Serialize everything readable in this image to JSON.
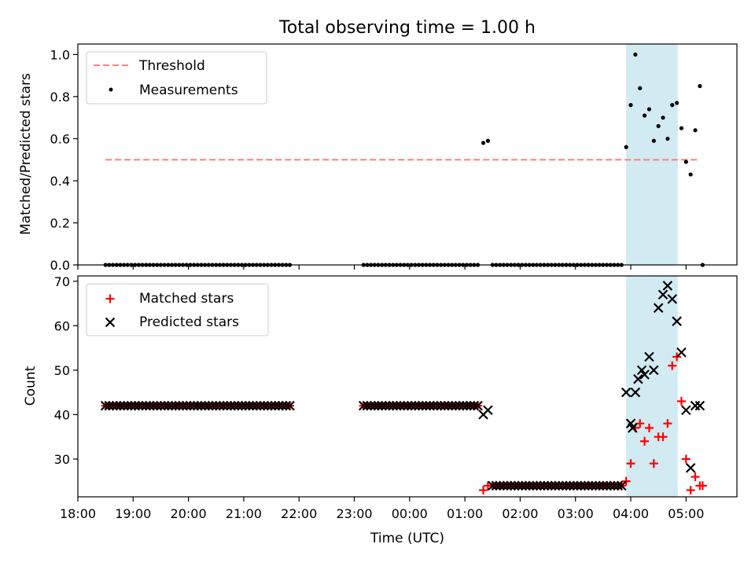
{
  "figure": {
    "title": "Total observing time = 1.00 h",
    "xlabel": "Time (UTC)"
  },
  "colors": {
    "threshold": "#ff7f7f",
    "measurements": "#000000",
    "matched": "#ff0000",
    "predicted": "#000000",
    "highlight": "#add8e6"
  },
  "chart_data": [
    {
      "type": "scatter",
      "ylabel": "Matched/Predicted stars",
      "xlim_hours": [
        18.0,
        29.92
      ],
      "ylim": [
        0.0,
        1.05
      ],
      "yticks": [
        "0.0",
        "0.2",
        "0.4",
        "0.6",
        "0.8",
        "1.0"
      ],
      "legend": {
        "position": "top-left",
        "entries": [
          "Threshold",
          "Measurements"
        ]
      },
      "highlight_span": [
        "03:55",
        "04:51"
      ],
      "series": [
        {
          "name": "Threshold",
          "style": "dashed-line",
          "x": [
            "18:30",
            "05:15"
          ],
          "y": [
            0.5,
            0.5
          ]
        },
        {
          "name": "Measurements",
          "style": "dot",
          "segments": [
            {
              "x_from": "18:30",
              "x_to": "21:50",
              "step_min": 4,
              "y": 0.0
            },
            {
              "x_from": "23:10",
              "x_to": "01:15",
              "step_min": 4,
              "y": 0.0
            },
            {
              "x_from": "01:30",
              "x_to": "03:50",
              "step_min": 4,
              "y": 0.0
            }
          ],
          "x": [
            "01:20",
            "01:25",
            "03:55",
            "04:00",
            "04:05",
            "04:10",
            "04:15",
            "04:20",
            "04:25",
            "04:30",
            "04:35",
            "04:40",
            "04:45",
            "04:50",
            "04:55",
            "05:00",
            "05:05",
            "05:10",
            "05:15",
            "05:18"
          ],
          "y": [
            0.58,
            0.59,
            0.56,
            0.76,
            1.0,
            0.84,
            0.71,
            0.74,
            0.59,
            0.66,
            0.7,
            0.6,
            0.76,
            0.77,
            0.65,
            0.49,
            0.43,
            0.64,
            0.85,
            0.0
          ]
        }
      ]
    },
    {
      "type": "scatter",
      "ylabel": "Count",
      "xlim_hours": [
        18.0,
        29.92
      ],
      "ylim": [
        21.5,
        71.2
      ],
      "yticks": [
        "30",
        "40",
        "50",
        "60",
        "70"
      ],
      "xticks": [
        "18:00",
        "19:00",
        "20:00",
        "21:00",
        "22:00",
        "23:00",
        "00:00",
        "01:00",
        "02:00",
        "03:00",
        "04:00",
        "05:00"
      ],
      "legend": {
        "position": "top-left",
        "entries": [
          "Matched stars",
          "Predicted stars"
        ]
      },
      "highlight_span": [
        "03:55",
        "04:51"
      ],
      "series": [
        {
          "name": "Matched stars",
          "style": "plus",
          "segments": [
            {
              "x_from": "18:30",
              "x_to": "21:50",
              "step_min": 4,
              "y": 42
            },
            {
              "x_from": "23:10",
              "x_to": "01:15",
              "step_min": 4,
              "y": 42
            },
            {
              "x_from": "01:30",
              "x_to": "03:50",
              "step_min": 4,
              "y": 24
            }
          ],
          "x": [
            "01:20",
            "01:25",
            "03:55",
            "04:00",
            "04:05",
            "04:10",
            "04:15",
            "04:20",
            "04:25",
            "04:30",
            "04:35",
            "04:40",
            "04:45",
            "04:50",
            "04:55",
            "05:00",
            "05:05",
            "05:10",
            "05:15",
            "05:18"
          ],
          "y": [
            23,
            24,
            25,
            29,
            37,
            38,
            34,
            37,
            29,
            35,
            35,
            38,
            51,
            53,
            43,
            30,
            23,
            26,
            24,
            24
          ]
        },
        {
          "name": "Predicted stars",
          "style": "x",
          "segments": [
            {
              "x_from": "18:30",
              "x_to": "21:50",
              "step_min": 4,
              "y": 42
            },
            {
              "x_from": "23:10",
              "x_to": "01:15",
              "step_min": 4,
              "y": 42
            },
            {
              "x_from": "01:30",
              "x_to": "03:50",
              "step_min": 4,
              "y": 24
            }
          ],
          "x": [
            "01:20",
            "01:25",
            "03:55",
            "04:00",
            "04:02",
            "04:05",
            "04:08",
            "04:12",
            "04:15",
            "04:20",
            "04:25",
            "04:30",
            "04:35",
            "04:40",
            "04:45",
            "04:50",
            "04:55",
            "05:00",
            "05:05",
            "05:10",
            "05:15"
          ],
          "y": [
            40,
            41,
            45,
            38,
            37,
            45,
            48,
            50,
            49,
            53,
            50,
            64,
            67,
            69,
            66,
            61,
            54,
            41,
            28,
            42,
            42
          ]
        }
      ]
    }
  ]
}
